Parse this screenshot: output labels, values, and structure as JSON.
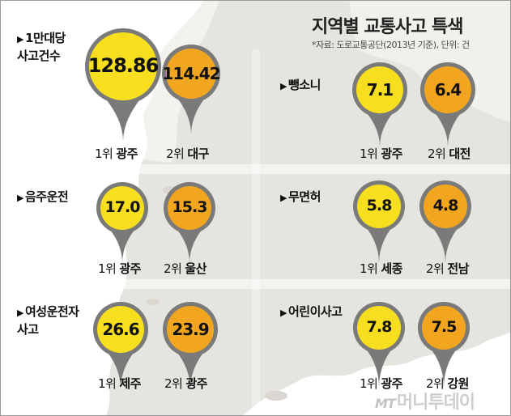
{
  "title": "지역별 교통사고 특색",
  "source": "*자료: 도로교통공단(2013년 기준), 단위: 건",
  "watermark": {
    "prefix": "MT",
    "text": "머니투데이"
  },
  "colors": {
    "first": "#f7de1e",
    "second": "#f2a61f",
    "stem": "#7a7a7a",
    "land": "#e6e4de",
    "sea": "#ffffff"
  },
  "categories": [
    {
      "label": "1만대당\n사고건수",
      "first": {
        "value": "128.86",
        "rank": "1위",
        "region": "광주"
      },
      "second": {
        "value": "114.42",
        "rank": "2위",
        "region": "대구"
      }
    },
    {
      "label": "뺑소니",
      "first": {
        "value": "7.1",
        "rank": "1위",
        "region": "광주"
      },
      "second": {
        "value": "6.4",
        "rank": "2위",
        "region": "대전"
      }
    },
    {
      "label": "음주운전",
      "first": {
        "value": "17.0",
        "rank": "1위",
        "region": "광주"
      },
      "second": {
        "value": "15.3",
        "rank": "2위",
        "region": "울산"
      }
    },
    {
      "label": "무면허",
      "first": {
        "value": "5.8",
        "rank": "1위",
        "region": "세종"
      },
      "second": {
        "value": "4.8",
        "rank": "2위",
        "region": "전남"
      }
    },
    {
      "label": "여성운전자\n사고",
      "first": {
        "value": "26.6",
        "rank": "1위",
        "region": "제주"
      },
      "second": {
        "value": "23.9",
        "rank": "2위",
        "region": "광주"
      }
    },
    {
      "label": "어린이사고",
      "first": {
        "value": "7.8",
        "rank": "1위",
        "region": "광주"
      },
      "second": {
        "value": "7.5",
        "rank": "2위",
        "region": "강원"
      }
    }
  ]
}
